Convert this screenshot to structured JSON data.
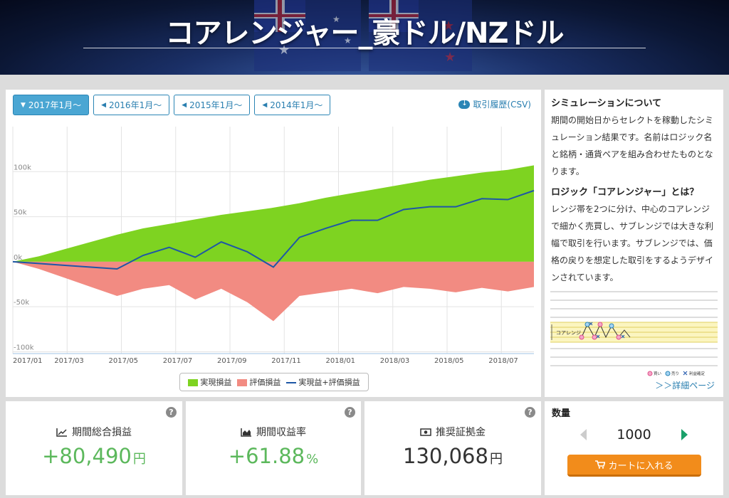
{
  "header": {
    "title": "コアレンジャー_豪ドル/NZドル"
  },
  "tabs": [
    {
      "label": "2017年1月〜",
      "active": true
    },
    {
      "label": "2016年1月〜",
      "active": false
    },
    {
      "label": "2015年1月〜",
      "active": false
    },
    {
      "label": "2014年1月〜",
      "active": false
    }
  ],
  "csv_label": "取引履歴(CSV)",
  "chart_data": {
    "type": "area",
    "y_tick_labels": [
      "100k",
      "50k",
      "0k",
      "-50k",
      "-100k"
    ],
    "y_ticks": [
      100000,
      50000,
      0,
      -50000,
      -100000
    ],
    "ylim": [
      -102000,
      150000
    ],
    "x_tick_labels": [
      "2017/01",
      "2017/03",
      "2017/05",
      "2017/07",
      "2017/09",
      "2017/11",
      "2018/01",
      "2018/03",
      "2018/05",
      "2018/07"
    ],
    "xlim": [
      0,
      20
    ],
    "grid": true,
    "legend_position": "bottom",
    "series": [
      {
        "name": "実現損益",
        "color": "#7ed321",
        "x": [
          0,
          1,
          2,
          3,
          4,
          5,
          6,
          7,
          8,
          9,
          10,
          11,
          12,
          13,
          14,
          15,
          16,
          17,
          18,
          19,
          20
        ],
        "values": [
          0,
          6000,
          14000,
          22000,
          30000,
          37000,
          42000,
          47000,
          52000,
          56000,
          60000,
          65000,
          71000,
          76000,
          81000,
          86000,
          91000,
          95000,
          99000,
          102000,
          107000
        ]
      },
      {
        "name": "評価損益",
        "color": "#f28b82",
        "x": [
          0,
          1,
          2,
          3,
          4,
          5,
          6,
          7,
          8,
          9,
          10,
          11,
          12,
          13,
          14,
          15,
          16,
          17,
          18,
          19,
          20
        ],
        "values": [
          0,
          -8000,
          -18000,
          -28000,
          -38000,
          -30000,
          -26000,
          -42000,
          -30000,
          -45000,
          -66000,
          -38000,
          -34000,
          -30000,
          -35000,
          -28000,
          -30000,
          -34000,
          -29000,
          -33000,
          -28000
        ]
      },
      {
        "name": "実現益+評価損益",
        "color": "#1e57a6",
        "x": [
          0,
          1,
          2,
          3,
          4,
          5,
          6,
          7,
          8,
          9,
          10,
          11,
          12,
          13,
          14,
          15,
          16,
          17,
          18,
          19,
          20
        ],
        "values": [
          0,
          -2000,
          -4000,
          -6000,
          -8000,
          7000,
          16000,
          5000,
          22000,
          11000,
          -6000,
          27000,
          37000,
          46000,
          46000,
          58000,
          61000,
          61000,
          70000,
          69000,
          79000
        ]
      }
    ]
  },
  "info": {
    "heading1": "シミュレーションについて",
    "text1": "期間の開始日からセレクトを稼動したシミュレーション結果です。名前はロジック名と銘柄・通貨ペアを組み合わせたものとなります。",
    "heading2": "ロジック「コアレンジャー」とは？",
    "text2": "レンジ帯を2つに分け、中心のコアレンジで細かく売買し、サブレンジでは大きな利幅で取引を行います。サブレンジでは、価格の戻りを想定した取引をするようデザインされています。",
    "diagram_label": "コアレンジ",
    "diagram_legend": [
      "買い",
      "売り",
      "利益確定"
    ],
    "detail_link": "＞＞詳細ページ"
  },
  "stats": {
    "total_profit": {
      "label": "期間総合損益",
      "value": "+80,490",
      "unit": "円"
    },
    "return_rate": {
      "label": "期間収益率",
      "value": "+61.88",
      "unit": "%"
    },
    "margin": {
      "label": "推奨証拠金",
      "value": "130,068",
      "unit": "円"
    }
  },
  "quantity": {
    "label": "数量",
    "value": "1000",
    "cart_label": "カートに入れる"
  },
  "colors": {
    "accent": "#2a85b5",
    "profit": "#5cb85c",
    "cart": "#f28c1b"
  }
}
